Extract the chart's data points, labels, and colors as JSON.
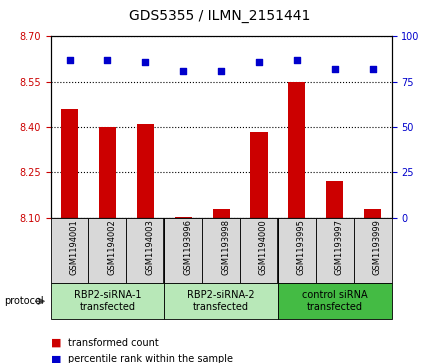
{
  "title": "GDS5355 / ILMN_2151441",
  "samples": [
    "GSM1194001",
    "GSM1194002",
    "GSM1194003",
    "GSM1193996",
    "GSM1193998",
    "GSM1194000",
    "GSM1193995",
    "GSM1193997",
    "GSM1193999"
  ],
  "red_values": [
    8.46,
    8.4,
    8.41,
    8.101,
    8.13,
    8.385,
    8.55,
    8.22,
    8.13
  ],
  "blue_values": [
    87,
    87,
    86,
    81,
    81,
    86,
    87,
    82,
    82
  ],
  "ylim_left": [
    8.1,
    8.7
  ],
  "ylim_right": [
    0,
    100
  ],
  "yticks_left": [
    8.1,
    8.25,
    8.4,
    8.55,
    8.7
  ],
  "yticks_right": [
    0,
    25,
    50,
    75,
    100
  ],
  "groups": [
    {
      "label": "RBP2-siRNA-1\ntransfected",
      "indices": [
        0,
        1,
        2
      ],
      "color": "#b8e8b8"
    },
    {
      "label": "RBP2-siRNA-2\ntransfected",
      "indices": [
        3,
        4,
        5
      ],
      "color": "#b8e8b8"
    },
    {
      "label": "control siRNA\ntransfected",
      "indices": [
        6,
        7,
        8
      ],
      "color": "#44bb44"
    }
  ],
  "protocol_label": "protocol",
  "legend_red": "transformed count",
  "legend_blue": "percentile rank within the sample",
  "bar_color": "#cc0000",
  "dot_color": "#0000cc",
  "bar_bottom": 8.1,
  "dot_size": 22,
  "background_color": "#ffffff",
  "plot_bg": "#ffffff",
  "tick_label_color_left": "#cc0000",
  "tick_label_color_right": "#0000cc",
  "title_fontsize": 10,
  "tick_fontsize": 7,
  "sample_fontsize": 6,
  "group_fontsize": 7,
  "legend_fontsize": 7
}
